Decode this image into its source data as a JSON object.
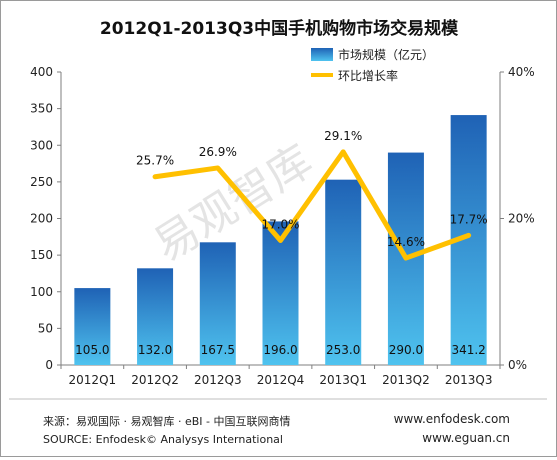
{
  "colors": {
    "bar_top": "#1f62b5",
    "bar_bottom": "#4fc3ef",
    "line": "#ffc000",
    "axis": "#7f7f7f",
    "grid": "#d9d9d9",
    "watermark": "#cfcfcf"
  },
  "watermark": "易观智库",
  "chart_data": {
    "type": "bar",
    "title": "2012Q1-2013Q3中国手机购物市场交易规模",
    "categories": [
      "2012Q1",
      "2012Q2",
      "2012Q3",
      "2012Q4",
      "2013Q1",
      "2013Q2",
      "2013Q3"
    ],
    "series": [
      {
        "name": "市场规模（亿元）",
        "type": "bar",
        "axis": "left",
        "values": [
          105.0,
          132.0,
          167.5,
          196.0,
          253.0,
          290.0,
          341.2
        ],
        "labels": [
          "105.0",
          "132.0",
          "167.5",
          "196.0",
          "253.0",
          "290.0",
          "341.2"
        ]
      },
      {
        "name": "环比增长率",
        "type": "line",
        "axis": "right",
        "values": [
          null,
          25.7,
          26.9,
          17.0,
          29.1,
          14.6,
          17.7
        ],
        "labels": [
          "",
          "25.7%",
          "26.9%",
          "17.0%",
          "29.1%",
          "14.6%",
          "17.7%"
        ]
      }
    ],
    "ylim": [
      0,
      400
    ],
    "yticks": [
      "0",
      "50",
      "100",
      "150",
      "200",
      "250",
      "300",
      "350",
      "400"
    ],
    "y2lim": [
      0,
      40
    ],
    "y2ticks": [
      "0%",
      "20%",
      "40%"
    ],
    "legend": "top-right",
    "grid": false
  },
  "footer": {
    "source_cn": "来源：易观国际 · 易观智库 · eBI - 中国互联网商情",
    "source_en": "SOURCE: Enfodesk© Analysys International",
    "site1": "www.enfodesk.com",
    "site2": "www.eguan.cn"
  }
}
